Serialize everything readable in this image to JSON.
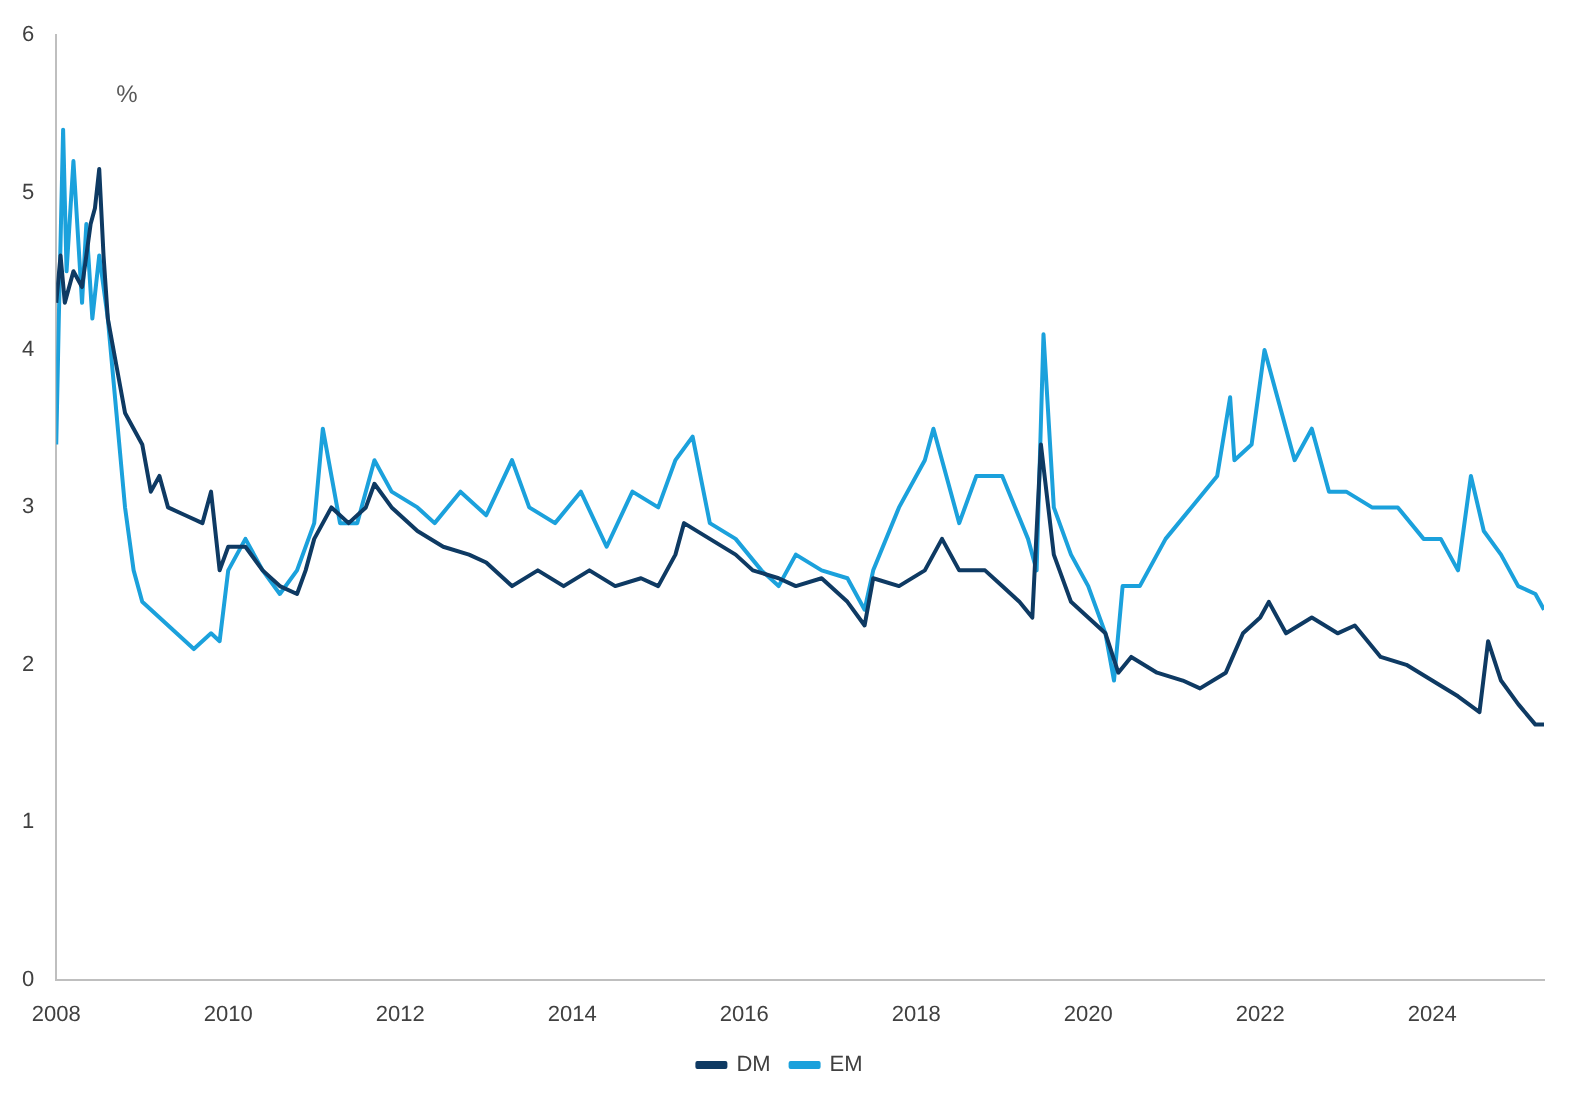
{
  "chart_data": {
    "type": "line",
    "ylabel": "%",
    "xlim": [
      2008,
      2025.3
    ],
    "xticks": [
      2008,
      2010,
      2012,
      2014,
      2016,
      2018,
      2020,
      2022,
      2024
    ],
    "ylim": [
      0,
      6
    ],
    "yticks": [
      0,
      1,
      2,
      3,
      4,
      5,
      6
    ],
    "grid": false,
    "legend": "bottom",
    "marker": "none",
    "line_style": "solid",
    "series": [
      {
        "name": "DM",
        "color": "#0e3a63",
        "x": [
          2008.0,
          2008.05,
          2008.1,
          2008.2,
          2008.3,
          2008.4,
          2008.45,
          2008.5,
          2008.55,
          2008.6,
          2008.7,
          2008.8,
          2008.9,
          2009.0,
          2009.1,
          2009.2,
          2009.3,
          2009.5,
          2009.7,
          2009.8,
          2009.9,
          2010.0,
          2010.2,
          2010.4,
          2010.6,
          2010.8,
          2010.9,
          2011.0,
          2011.2,
          2011.4,
          2011.6,
          2011.7,
          2011.9,
          2012.2,
          2012.5,
          2012.8,
          2013.0,
          2013.3,
          2013.6,
          2013.9,
          2014.2,
          2014.5,
          2014.8,
          2015.0,
          2015.2,
          2015.3,
          2015.6,
          2015.9,
          2016.1,
          2016.4,
          2016.6,
          2016.9,
          2017.2,
          2017.4,
          2017.5,
          2017.8,
          2018.1,
          2018.3,
          2018.5,
          2018.8,
          2019.0,
          2019.2,
          2019.35,
          2019.45,
          2019.6,
          2019.8,
          2020.0,
          2020.2,
          2020.35,
          2020.5,
          2020.8,
          2021.1,
          2021.3,
          2021.6,
          2021.8,
          2022.0,
          2022.1,
          2022.3,
          2022.6,
          2022.9,
          2023.1,
          2023.4,
          2023.7,
          2024.0,
          2024.3,
          2024.55,
          2024.65,
          2024.8,
          2025.0,
          2025.2,
          2025.3
        ],
        "values": [
          4.3,
          4.6,
          4.3,
          4.5,
          4.4,
          4.8,
          4.9,
          5.15,
          4.6,
          4.2,
          3.9,
          3.6,
          3.5,
          3.4,
          3.1,
          3.2,
          3.0,
          2.95,
          2.9,
          3.1,
          2.6,
          2.75,
          2.75,
          2.6,
          2.5,
          2.45,
          2.6,
          2.8,
          3.0,
          2.9,
          3.0,
          3.15,
          3.0,
          2.85,
          2.75,
          2.7,
          2.65,
          2.5,
          2.6,
          2.5,
          2.6,
          2.5,
          2.55,
          2.5,
          2.7,
          2.9,
          2.8,
          2.7,
          2.6,
          2.55,
          2.5,
          2.55,
          2.4,
          2.25,
          2.55,
          2.5,
          2.6,
          2.8,
          2.6,
          2.6,
          2.5,
          2.4,
          2.3,
          3.4,
          2.7,
          2.4,
          2.3,
          2.2,
          1.95,
          2.05,
          1.95,
          1.9,
          1.85,
          1.95,
          2.2,
          2.3,
          2.4,
          2.2,
          2.3,
          2.2,
          2.25,
          2.05,
          2.0,
          1.9,
          1.8,
          1.7,
          2.15,
          1.9,
          1.75,
          1.62,
          1.62
        ]
      },
      {
        "name": "EM",
        "color": "#1ba1dc",
        "x": [
          2008.0,
          2008.03,
          2008.08,
          2008.12,
          2008.2,
          2008.3,
          2008.35,
          2008.42,
          2008.5,
          2008.6,
          2008.7,
          2008.8,
          2008.9,
          2009.0,
          2009.2,
          2009.4,
          2009.6,
          2009.8,
          2009.9,
          2010.0,
          2010.2,
          2010.4,
          2010.6,
          2010.8,
          2011.0,
          2011.1,
          2011.3,
          2011.5,
          2011.7,
          2011.9,
          2012.2,
          2012.4,
          2012.7,
          2013.0,
          2013.3,
          2013.5,
          2013.8,
          2014.1,
          2014.4,
          2014.7,
          2015.0,
          2015.2,
          2015.4,
          2015.6,
          2015.9,
          2016.2,
          2016.4,
          2016.6,
          2016.9,
          2017.2,
          2017.4,
          2017.5,
          2017.8,
          2018.1,
          2018.2,
          2018.5,
          2018.7,
          2019.0,
          2019.3,
          2019.4,
          2019.48,
          2019.6,
          2019.8,
          2020.0,
          2020.2,
          2020.3,
          2020.4,
          2020.6,
          2020.9,
          2021.2,
          2021.5,
          2021.65,
          2021.7,
          2021.9,
          2022.05,
          2022.2,
          2022.4,
          2022.6,
          2022.8,
          2023.0,
          2023.3,
          2023.6,
          2023.9,
          2024.1,
          2024.3,
          2024.45,
          2024.6,
          2024.8,
          2025.0,
          2025.2,
          2025.3
        ],
        "values": [
          3.4,
          4.2,
          5.4,
          4.5,
          5.2,
          4.3,
          4.8,
          4.2,
          4.6,
          4.2,
          3.6,
          3.0,
          2.6,
          2.4,
          2.3,
          2.2,
          2.1,
          2.2,
          2.15,
          2.6,
          2.8,
          2.6,
          2.45,
          2.6,
          2.9,
          3.5,
          2.9,
          2.9,
          3.3,
          3.1,
          3.0,
          2.9,
          3.1,
          2.95,
          3.3,
          3.0,
          2.9,
          3.1,
          2.75,
          3.1,
          3.0,
          3.3,
          3.45,
          2.9,
          2.8,
          2.6,
          2.5,
          2.7,
          2.6,
          2.55,
          2.35,
          2.6,
          3.0,
          3.3,
          3.5,
          2.9,
          3.2,
          3.2,
          2.8,
          2.6,
          4.1,
          3.0,
          2.7,
          2.5,
          2.2,
          1.9,
          2.5,
          2.5,
          2.8,
          3.0,
          3.2,
          3.7,
          3.3,
          3.4,
          4.0,
          3.7,
          3.3,
          3.5,
          3.1,
          3.1,
          3.0,
          3.0,
          2.8,
          2.8,
          2.6,
          3.2,
          2.85,
          2.7,
          2.5,
          2.45,
          2.35
        ]
      }
    ]
  }
}
